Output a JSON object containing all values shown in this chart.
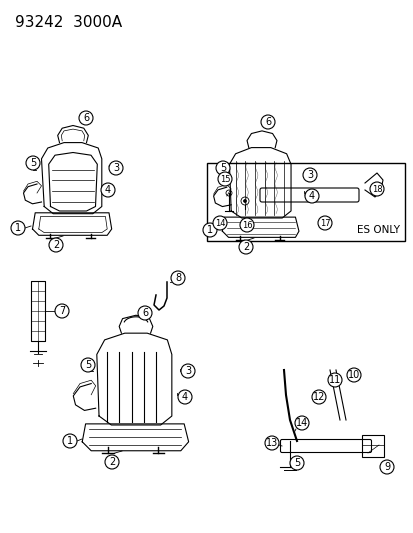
{
  "title": "93242  3000A",
  "bg_color": "#ffffff",
  "line_color": "#000000",
  "title_fontsize": 11,
  "callout_fontsize": 7,
  "es_only_label": "ES ONLY"
}
